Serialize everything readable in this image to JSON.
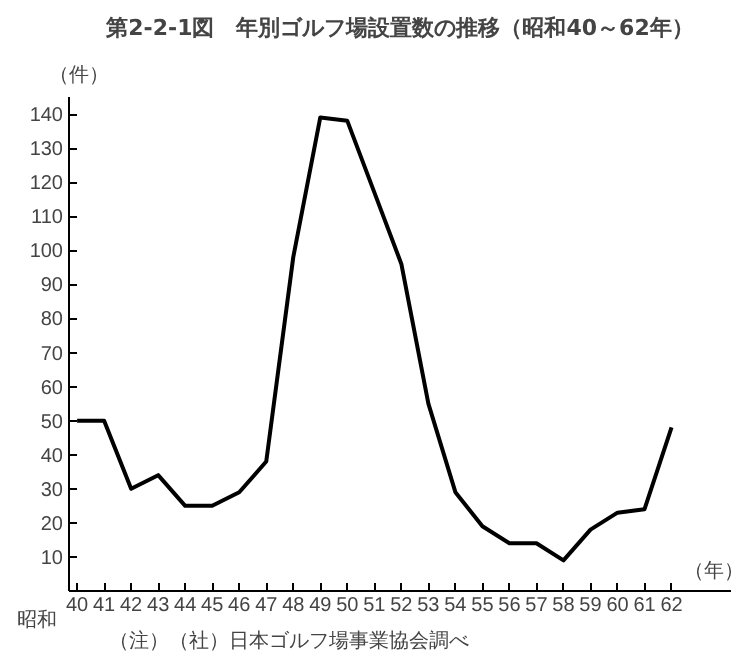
{
  "chart_data": {
    "type": "line",
    "title": "第2-2-1図　年別ゴルフ場設置数の推移（昭和40～62年）",
    "ylabel": "（件）",
    "xlabel": "（年）",
    "categories": [
      "40",
      "41",
      "42",
      "43",
      "44",
      "45",
      "46",
      "47",
      "48",
      "49",
      "50",
      "51",
      "52",
      "53",
      "54",
      "55",
      "56",
      "57",
      "58",
      "59",
      "60",
      "61",
      "62"
    ],
    "series": [
      {
        "color": "#000000",
        "values": [
          50,
          50,
          30,
          34,
          25,
          25,
          29,
          38,
          98,
          139,
          138,
          117,
          96,
          55,
          29,
          19,
          14,
          14,
          9,
          18,
          23,
          24,
          48
        ]
      }
    ],
    "ylim": [
      0,
      145
    ],
    "yticks": [
      10,
      20,
      30,
      40,
      50,
      60,
      70,
      80,
      90,
      100,
      110,
      120,
      130,
      140
    ],
    "grid": false,
    "marker": "none",
    "line_style": "solid",
    "annotations": [
      "昭和",
      "（注）（社）日本ゴルフ場事業協会調べ"
    ]
  }
}
